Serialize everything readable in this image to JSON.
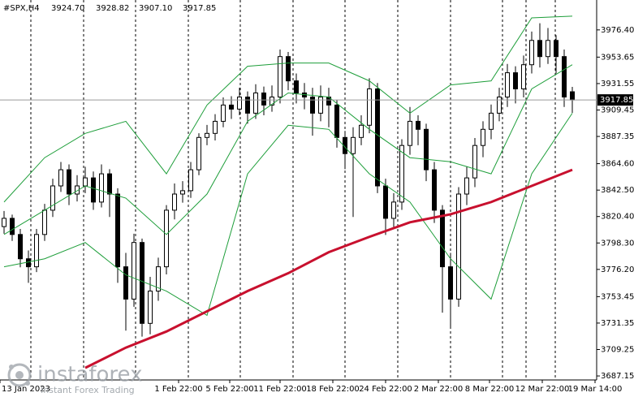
{
  "chart_data": {
    "type": "candlestick",
    "title": "#SPX,H4",
    "header_values": [
      "3924.70",
      "3928.82",
      "3907.10",
      "3917.85"
    ],
    "open": [
      3812.0,
      3818.9,
      3805.4,
      3785.1,
      3778.4,
      3805.4,
      3825.7,
      3846.0,
      3859.5,
      3839.2,
      3846.0,
      3852.7,
      3832.5,
      3856.1,
      3839.2,
      3778.4,
      3751.4,
      3798.7,
      3731.1,
      3758.1,
      3778.4,
      3825.7,
      3839.2,
      3842.0,
      3859.5,
      3886.5,
      3889.9,
      3900.0,
      3913.6,
      3910.2,
      3920.3,
      3906.8,
      3923.7,
      3913.6,
      3920.3,
      3954.1,
      3933.8,
      3923.7,
      3920.3,
      3906.8,
      3920.3,
      3913.6,
      3886.5,
      3873.0,
      3886.5,
      3896.7,
      3927.1,
      3846.0,
      3818.9,
      3832.5,
      3879.8,
      3900.0,
      3893.3,
      3859.5,
      3825.7,
      3778.4,
      3751.4,
      3839.2,
      3852.7,
      3879.8,
      3893.3,
      3906.8,
      3920.3,
      3940.6,
      3927.1,
      3947.3,
      3967.6,
      3954.1,
      3967.6,
      3954.1,
      3924.7
    ],
    "high": [
      3825.0,
      3822.0,
      3810.0,
      3792.0,
      3810.0,
      3831.0,
      3852.0,
      3866.0,
      3864.0,
      3855.0,
      3862.0,
      3858.0,
      3864.0,
      3860.0,
      3844.0,
      3790.0,
      3806.0,
      3802.0,
      3770.0,
      3786.0,
      3830.0,
      3848.0,
      3850.0,
      3866.0,
      3890.0,
      3897.0,
      3906.0,
      3920.0,
      3921.0,
      3928.0,
      3925.0,
      3931.0,
      3929.0,
      3930.0,
      3960.0,
      3958.0,
      3940.0,
      3932.0,
      3928.0,
      3930.0,
      3928.0,
      3918.0,
      3892.0,
      3895.0,
      3905.0,
      3936.0,
      3932.0,
      3852.0,
      3840.0,
      3885.0,
      3912.0,
      3905.0,
      3898.0,
      3866.0,
      3830.0,
      3790.0,
      3845.0,
      3862.0,
      3886.0,
      3900.0,
      3914.0,
      3928.0,
      3948.0,
      3946.0,
      3955.0,
      3975.0,
      3982.0,
      3978.0,
      3972.0,
      3960.0,
      3928.82
    ],
    "low": [
      3806.0,
      3800.0,
      3778.0,
      3765.0,
      3774.0,
      3800.0,
      3820.0,
      3841.0,
      3830.0,
      3833.0,
      3840.0,
      3826.0,
      3828.0,
      3820.0,
      3765.0,
      3725.0,
      3745.0,
      3720.0,
      3722.0,
      3750.0,
      3772.0,
      3818.0,
      3832.0,
      3836.0,
      3855.0,
      3880.0,
      3884.0,
      3895.0,
      3902.0,
      3905.0,
      3898.0,
      3902.0,
      3905.0,
      3908.0,
      3915.0,
      3926.0,
      3915.0,
      3910.0,
      3888.0,
      3900.0,
      3895.0,
      3878.0,
      3860.0,
      3820.0,
      3880.0,
      3890.0,
      3840.0,
      3805.0,
      3810.0,
      3826.0,
      3872.0,
      3880.0,
      3850.0,
      3815.0,
      3740.0,
      3728.0,
      3745.0,
      3830.0,
      3845.0,
      3870.0,
      3885.0,
      3900.0,
      3912.0,
      3915.0,
      3920.0,
      3940.0,
      3945.0,
      3948.0,
      3940.0,
      3912.0,
      3907.1
    ],
    "close": [
      3818.9,
      3805.4,
      3785.1,
      3778.4,
      3805.4,
      3825.7,
      3846.0,
      3859.5,
      3839.2,
      3846.0,
      3852.7,
      3832.5,
      3856.1,
      3839.2,
      3778.4,
      3751.4,
      3798.7,
      3731.1,
      3758.1,
      3778.4,
      3825.7,
      3839.2,
      3842.0,
      3859.5,
      3886.5,
      3889.9,
      3900.0,
      3913.6,
      3910.2,
      3920.3,
      3906.8,
      3923.7,
      3913.6,
      3920.3,
      3954.1,
      3933.8,
      3923.7,
      3920.3,
      3906.8,
      3920.3,
      3913.6,
      3886.5,
      3873.0,
      3886.5,
      3896.7,
      3927.1,
      3846.0,
      3818.9,
      3832.5,
      3879.8,
      3900.0,
      3893.3,
      3859.5,
      3825.7,
      3778.4,
      3751.4,
      3839.2,
      3852.7,
      3879.8,
      3893.3,
      3906.8,
      3920.3,
      3940.6,
      3927.1,
      3947.3,
      3967.6,
      3954.1,
      3967.6,
      3954.1,
      3920.3,
      3917.85
    ],
    "up_color": "#ffffff",
    "down_color": "#000000",
    "xlim": [
      -0.5,
      73
    ],
    "ylim": [
      3683.8,
      4001.4
    ],
    "yticks": [
      {
        "value": 3976.4,
        "label": "3976.40"
      },
      {
        "value": 3953.65,
        "label": "3953.65"
      },
      {
        "value": 3931.55,
        "label": "3931.55"
      },
      {
        "value": 3909.45,
        "label": "3909.45"
      },
      {
        "value": 3887.35,
        "label": "3887.35"
      },
      {
        "value": 3864.6,
        "label": "3864.60"
      },
      {
        "value": 3842.5,
        "label": "3842.50"
      },
      {
        "value": 3820.4,
        "label": "3820.40"
      },
      {
        "value": 3798.3,
        "label": "3798.30"
      },
      {
        "value": 3776.2,
        "label": "3776.20"
      },
      {
        "value": 3753.45,
        "label": "3753.45"
      },
      {
        "value": 3731.35,
        "label": "3731.35"
      },
      {
        "value": 3709.25,
        "label": "3709.25"
      },
      {
        "value": 3687.15,
        "label": "3687.15"
      }
    ],
    "xticks": [
      {
        "value": -0.5,
        "label": "13 Jan 2023"
      },
      {
        "value": 21.5,
        "label": "1 Feb 22:00"
      },
      {
        "value": 27.8,
        "label": "5 Feb 22:00"
      },
      {
        "value": 34,
        "label": "11 Feb 22:00"
      },
      {
        "value": 40.5,
        "label": "18 Feb 22:00"
      },
      {
        "value": 47,
        "label": "24 Feb 22:00"
      },
      {
        "value": 53.5,
        "label": "2 Mar 22:00"
      },
      {
        "value": 59.8,
        "label": "8 Mar 22:00"
      },
      {
        "value": 66.3,
        "label": "12 Mar 22:00"
      },
      {
        "value": 72.8,
        "label": "19 Mar 14:00"
      }
    ],
    "lines": {
      "x": [
        0,
        5,
        10,
        15,
        20,
        25,
        30,
        35,
        40,
        45,
        50,
        55,
        60,
        65,
        70
      ],
      "series": [
        {
          "color": "#1e9e3a",
          "width": 1,
          "values": [
            3832.5,
            3869.6,
            3889.9,
            3900.0,
            3856.1,
            3913.6,
            3946.0,
            3948.7,
            3948.7,
            3933.8,
            3906.8,
            3930.4,
            3933.8,
            3986.5,
            3987.9
          ]
        },
        {
          "color": "#1e9e3a",
          "width": 1,
          "values": [
            3805.4,
            3825.7,
            3846.0,
            3835.8,
            3805.4,
            3839.2,
            3900.0,
            3923.7,
            3920.3,
            3893.3,
            3869.6,
            3866.2,
            3856.1,
            3927.1,
            3947.3
          ]
        },
        {
          "color": "#1e9e3a",
          "width": 1,
          "values": [
            3778.4,
            3785.1,
            3798.7,
            3771.6,
            3758.1,
            3737.8,
            3856.1,
            3896.7,
            3893.3,
            3856.1,
            3832.5,
            3785.1,
            3751.4,
            3856.1,
            3906.8
          ]
        },
        {
          "color": "#c8102e",
          "width": 3,
          "values": [
            null,
            null,
            3693.9,
            3710.8,
            3724.3,
            3741.2,
            3758.1,
            3773.0,
            3790.6,
            3803.4,
            3815.6,
            3822.3,
            3832.5,
            3846.0,
            3859.5
          ]
        }
      ]
    },
    "last_price": {
      "value": 3917.85,
      "label": "3917.85"
    }
  },
  "watermark": {
    "name": "instaforex",
    "tagline": "Instant Forex Trading"
  }
}
